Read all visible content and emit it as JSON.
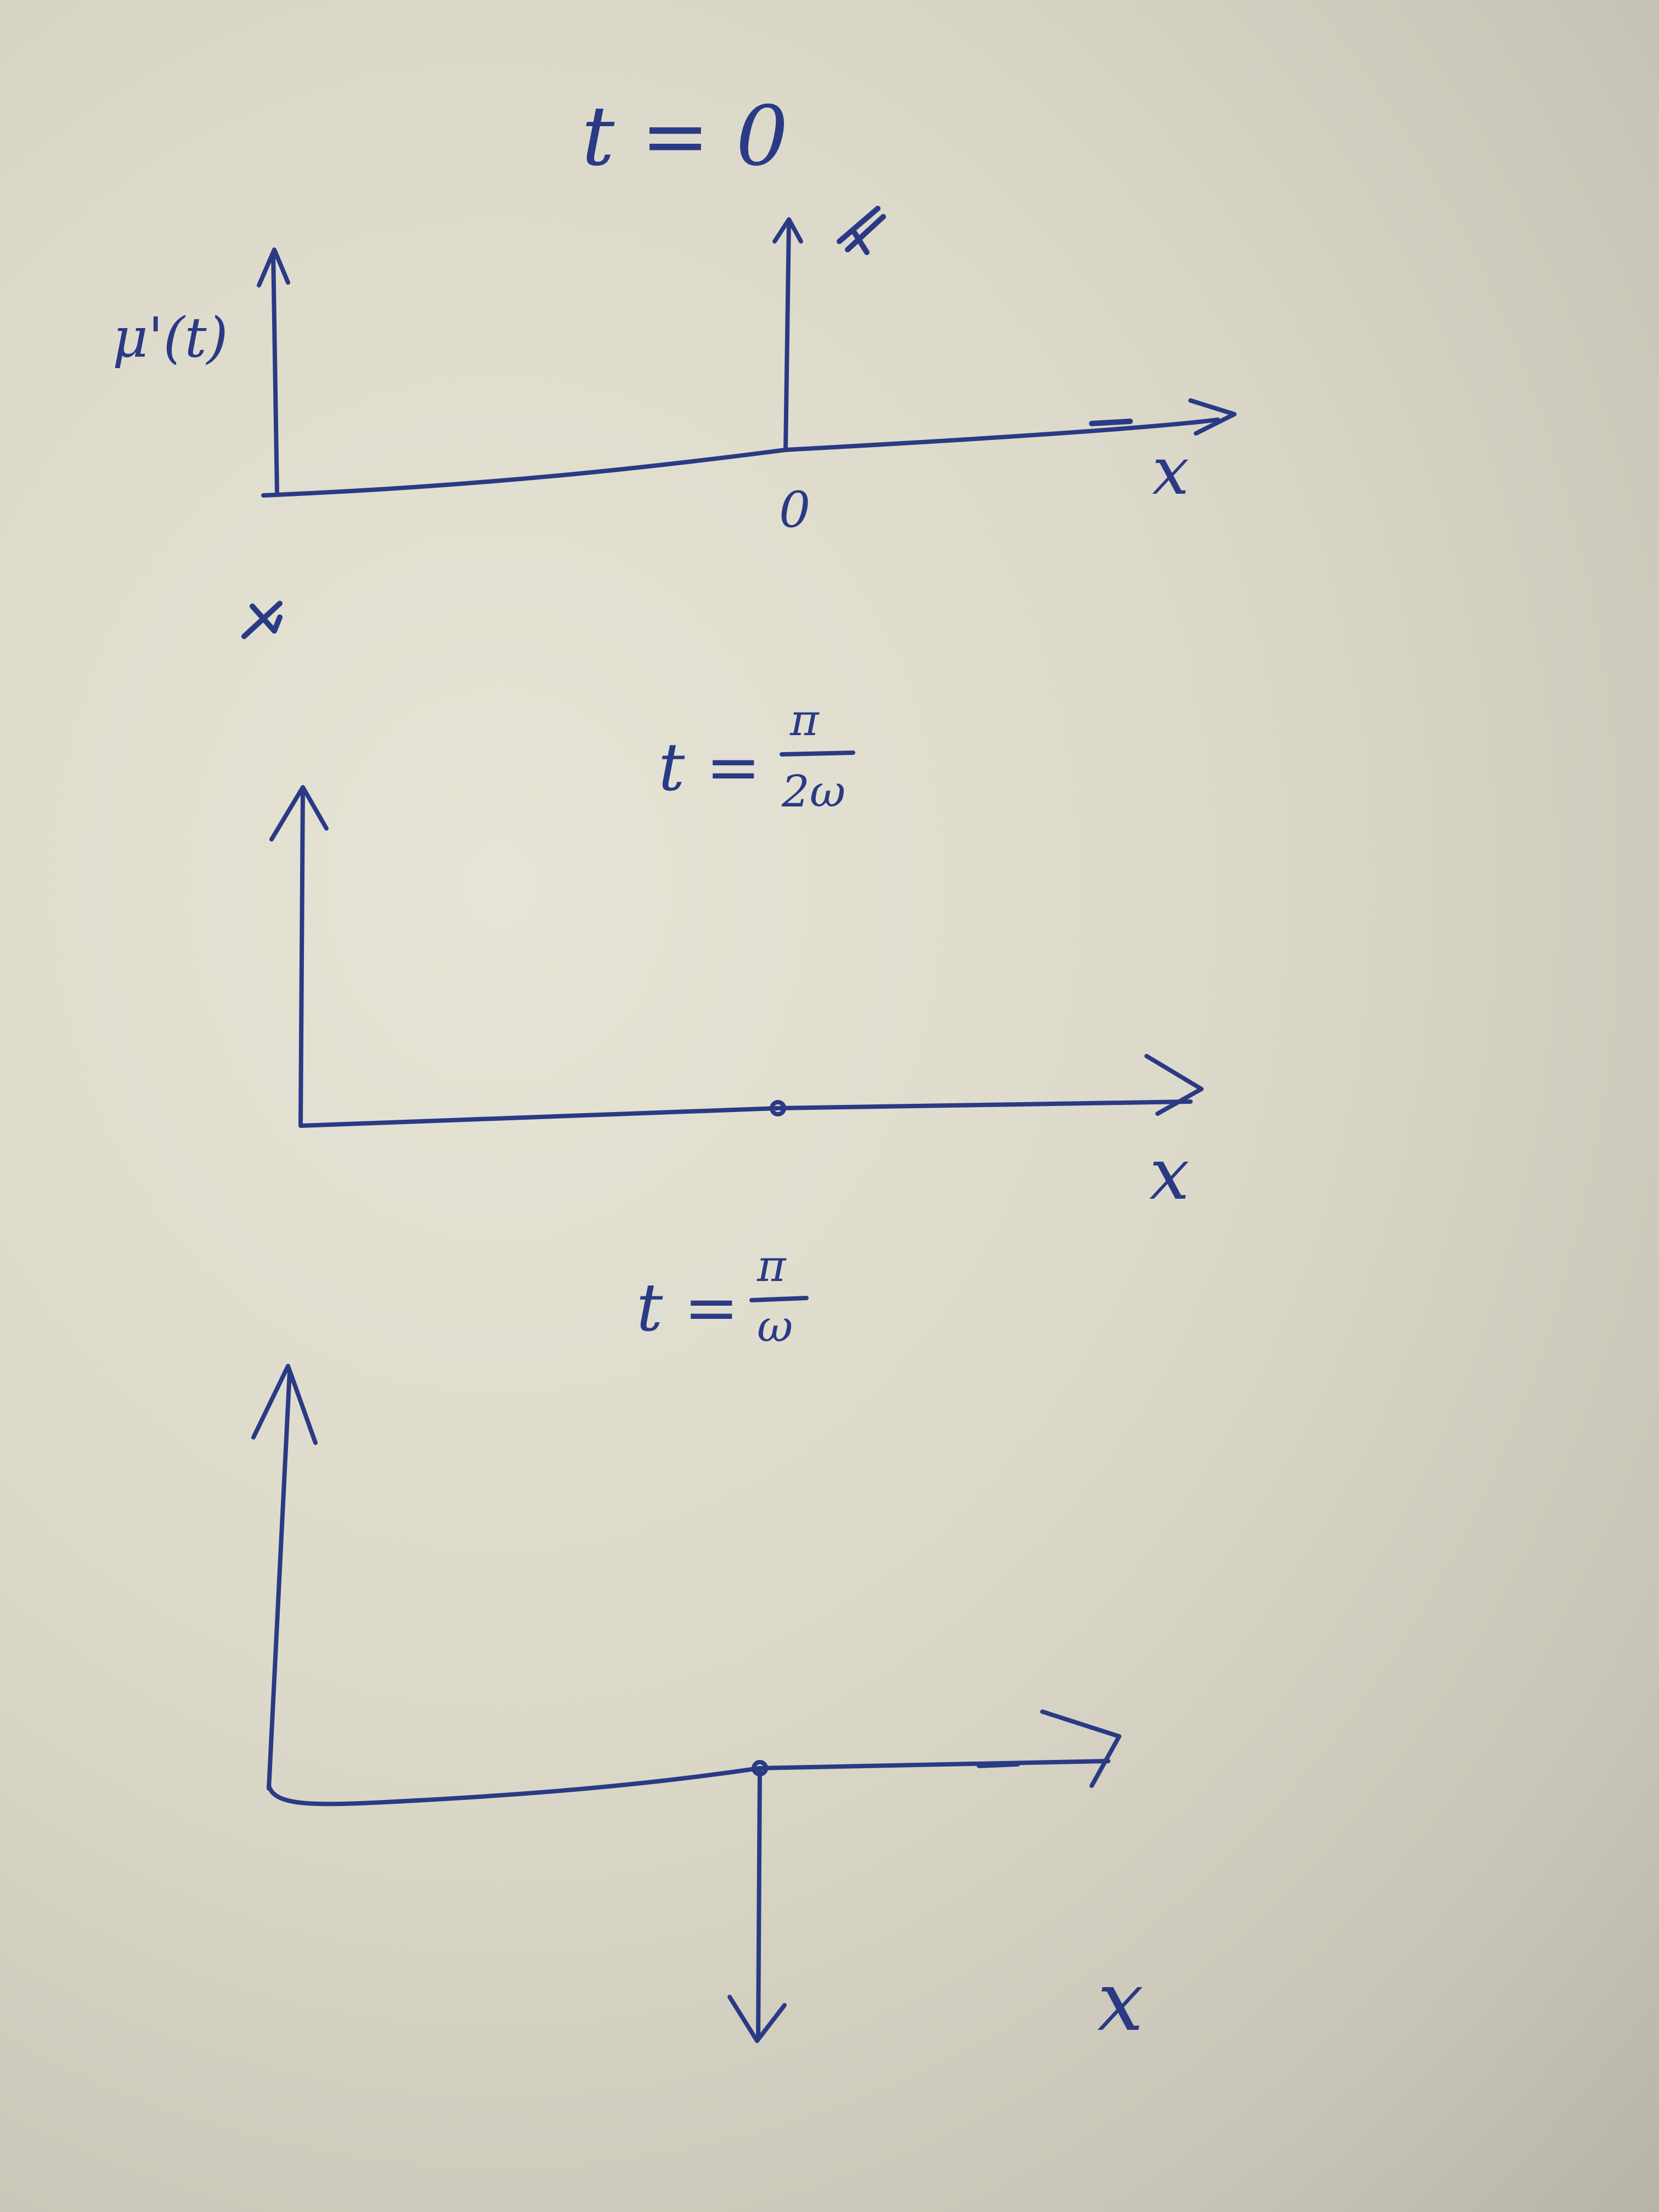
{
  "panels": [
    {
      "time_label": "t = 0",
      "y_axis_label": "μ'(t)",
      "x_axis_label": "x",
      "origin_label": "0",
      "spike": "up"
    },
    {
      "time_label_prefix": "t =",
      "time_label_numerator": "π",
      "time_label_denominator": "2ω",
      "x_axis_label": "x",
      "spike": "none"
    },
    {
      "time_label_prefix": "t =",
      "time_label_numerator": "π",
      "time_label_denominator": "ω",
      "x_axis_label": "x",
      "spike": "down"
    }
  ],
  "colors": {
    "ink": "#2a3a85",
    "paper": "#dcd9ca"
  }
}
